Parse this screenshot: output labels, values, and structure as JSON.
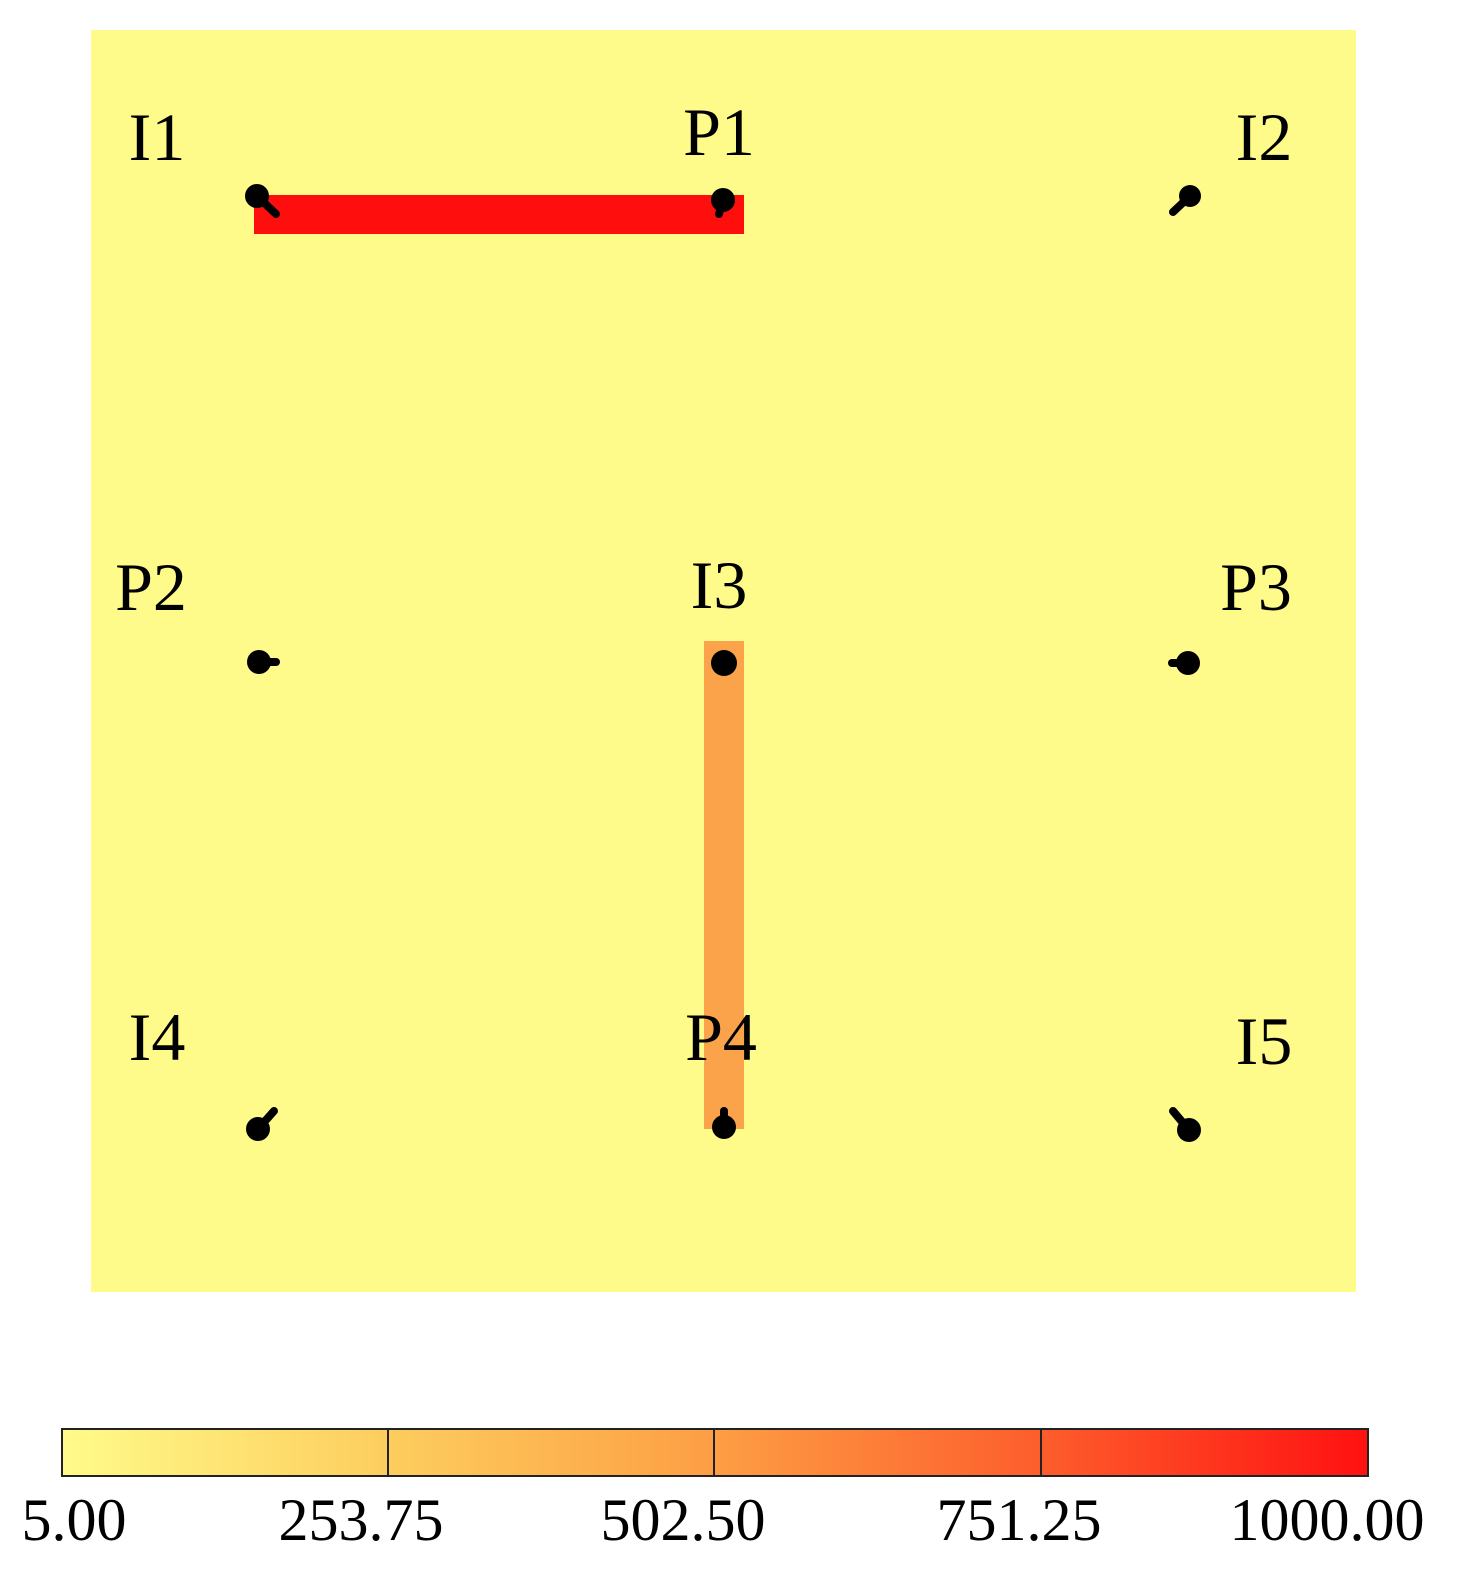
{
  "map": {
    "background_color": "#fffb8a",
    "well_color": "#000000",
    "wells": [
      {
        "name": "I1"
      },
      {
        "name": "P1"
      },
      {
        "name": "I2"
      },
      {
        "name": "P2"
      },
      {
        "name": "I3"
      },
      {
        "name": "P3"
      },
      {
        "name": "I4"
      },
      {
        "name": "P4"
      },
      {
        "name": "I5"
      }
    ],
    "features": [
      {
        "name": "fracture-I1-P1",
        "value": 1000.0,
        "color": "#ff0e0e"
      },
      {
        "name": "fracture-I3-P4",
        "value": 620,
        "color": "#faa34a"
      }
    ]
  },
  "colorbar": {
    "min": 5.0,
    "max": 1000.0,
    "ticks": [
      "5.00",
      "253.75",
      "502.50",
      "751.25",
      "1000.00"
    ],
    "colors": [
      "#fffb8a",
      "#fdcd5e",
      "#fd9e44",
      "#fd5d2c",
      "#ff1111"
    ]
  }
}
